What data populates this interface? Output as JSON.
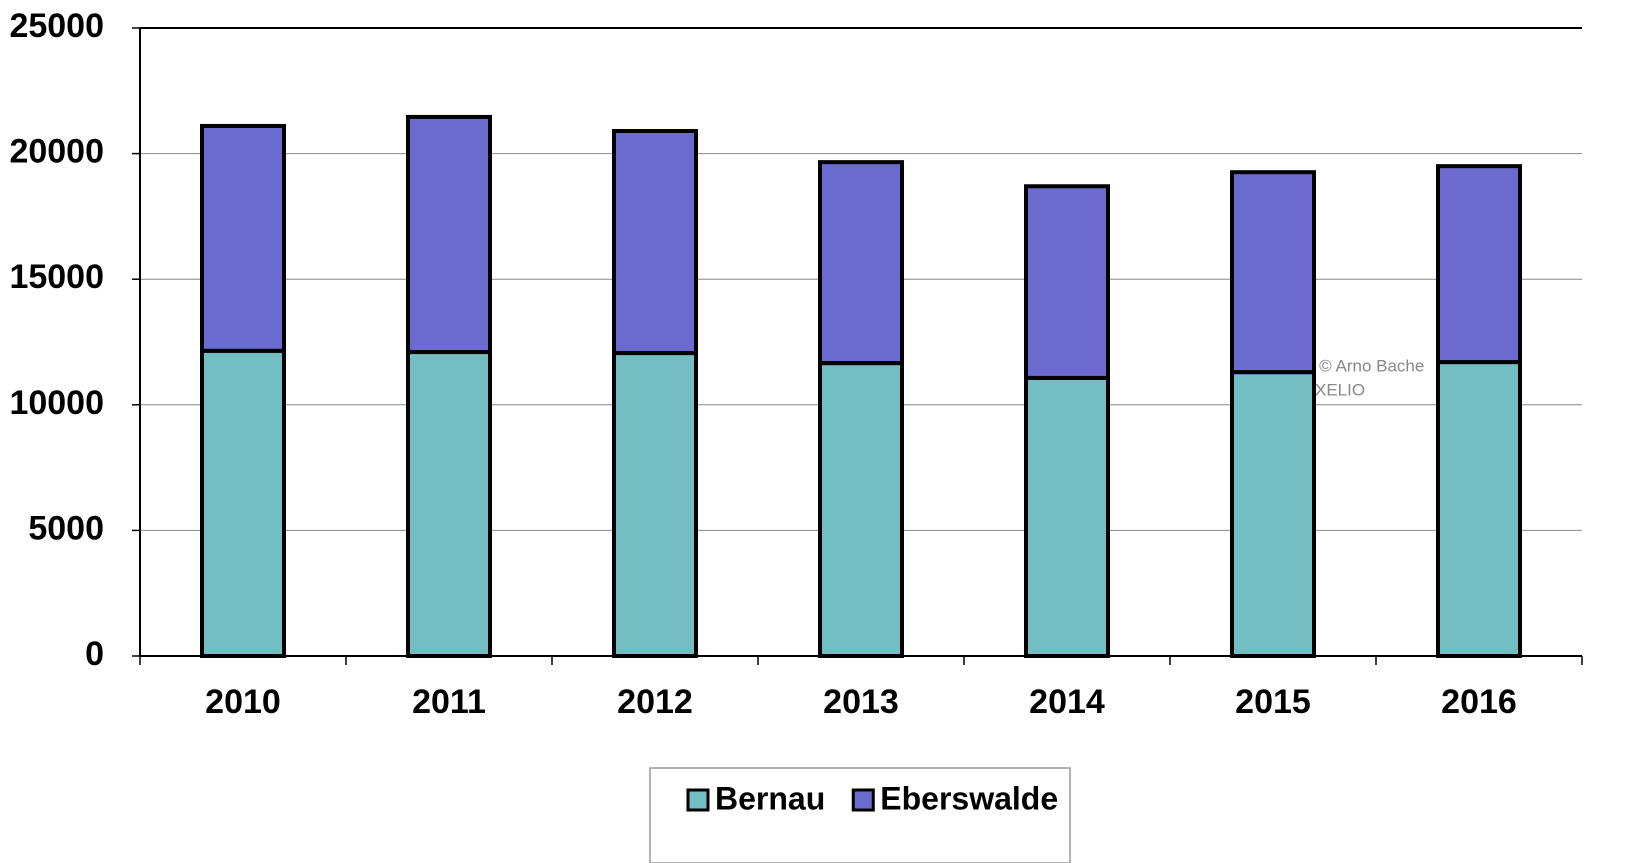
{
  "chart_data": {
    "type": "stacked_bar",
    "categories": [
      "2010",
      "2011",
      "2012",
      "2013",
      "2014",
      "2015",
      "2016"
    ],
    "series": [
      {
        "name": "Bernau",
        "color": "#72bec2",
        "values": [
          12150,
          12100,
          12060,
          11660,
          11070,
          11300,
          11700
        ]
      },
      {
        "name": "Eberswalde",
        "color": "#6b6bcf",
        "values": [
          8950,
          9360,
          8840,
          8000,
          7630,
          7960,
          7800
        ]
      }
    ],
    "ylim": [
      0,
      25000
    ],
    "yticks": [
      0,
      5000,
      10000,
      15000,
      20000,
      25000
    ],
    "grid": true,
    "legend": "bottom",
    "watermark": [
      "d © Arno Bache",
      "XELIO"
    ]
  }
}
